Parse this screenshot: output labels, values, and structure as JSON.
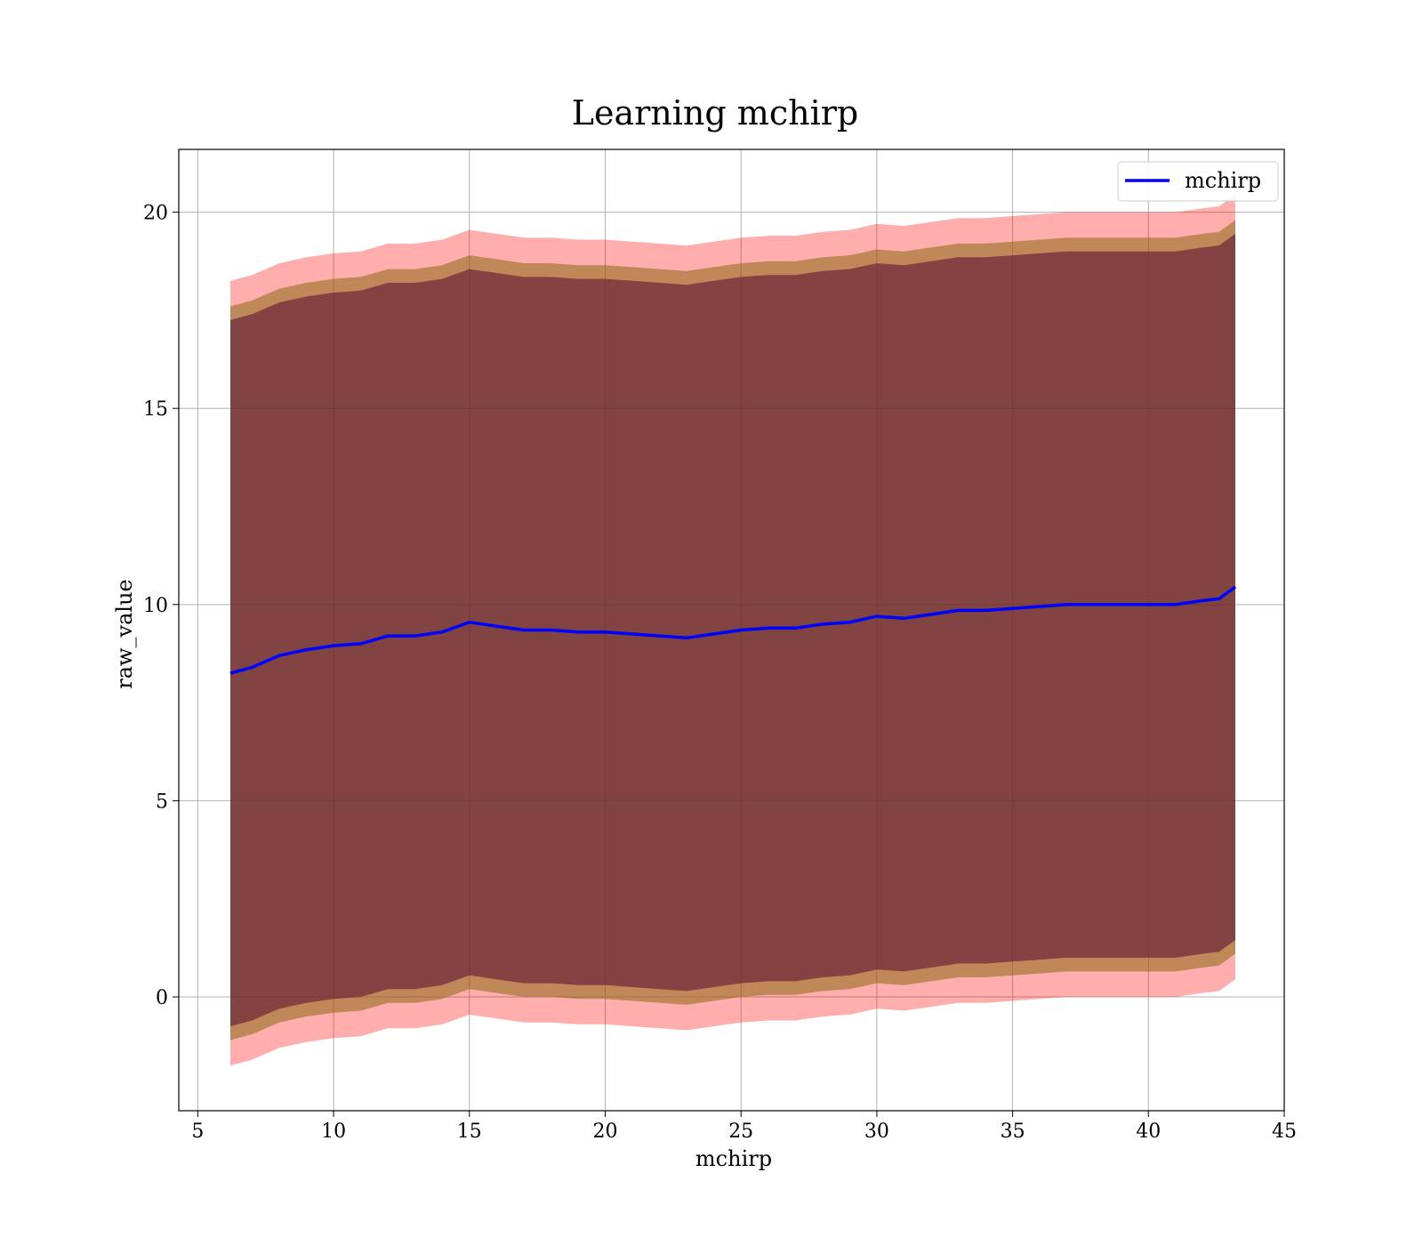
{
  "chart_data": {
    "type": "line",
    "title": "Learning mchirp",
    "xlabel": "mchirp",
    "ylabel": "raw_value",
    "xlim": [
      4.3,
      45
    ],
    "ylim": [
      -2.9,
      21.6
    ],
    "xticks": [
      5,
      10,
      15,
      20,
      25,
      30,
      35,
      40,
      45
    ],
    "yticks": [
      0,
      5,
      10,
      15,
      20
    ],
    "grid": true,
    "legend_position": "top-right",
    "colors": {
      "line": "#0000ff",
      "outer_band": "#ff0000",
      "middle_band": "#8b6914",
      "inner_band": "#5a1a33"
    },
    "x": [
      6.2,
      7,
      8,
      9,
      10,
      11,
      12,
      13,
      14,
      15,
      16,
      17,
      18,
      19,
      20,
      21,
      22,
      23,
      24,
      25,
      26,
      27,
      28,
      29,
      30,
      31,
      32,
      33,
      34,
      35,
      36,
      37,
      38,
      39,
      40,
      41,
      42,
      42.6,
      43.2
    ],
    "series": [
      {
        "name": "mchirp",
        "values": [
          8.25,
          8.4,
          8.7,
          8.85,
          8.95,
          9.0,
          9.2,
          9.2,
          9.3,
          9.55,
          9.45,
          9.35,
          9.35,
          9.3,
          9.3,
          9.25,
          9.2,
          9.15,
          9.25,
          9.35,
          9.4,
          9.4,
          9.5,
          9.55,
          9.7,
          9.65,
          9.75,
          9.85,
          9.85,
          9.9,
          9.95,
          10.0,
          10.0,
          10.0,
          10.0,
          10.0,
          10.1,
          10.15,
          10.45
        ]
      }
    ],
    "bands": {
      "outer": {
        "lower": [
          -1.75,
          -1.6,
          -1.3,
          -1.15,
          -1.05,
          -1.0,
          -0.8,
          -0.8,
          -0.7,
          -0.45,
          -0.55,
          -0.65,
          -0.65,
          -0.7,
          -0.7,
          -0.75,
          -0.8,
          -0.85,
          -0.75,
          -0.65,
          -0.6,
          -0.6,
          -0.5,
          -0.45,
          -0.3,
          -0.35,
          -0.25,
          -0.15,
          -0.15,
          -0.1,
          -0.05,
          0.0,
          0.0,
          0.0,
          0.0,
          0.0,
          0.1,
          0.15,
          0.45
        ],
        "upper": [
          18.25,
          18.4,
          18.7,
          18.85,
          18.95,
          19.0,
          19.2,
          19.2,
          19.3,
          19.55,
          19.45,
          19.35,
          19.35,
          19.3,
          19.3,
          19.25,
          19.2,
          19.15,
          19.25,
          19.35,
          19.4,
          19.4,
          19.5,
          19.55,
          19.7,
          19.65,
          19.75,
          19.85,
          19.85,
          19.9,
          19.95,
          20.0,
          20.0,
          20.0,
          20.0,
          20.0,
          20.1,
          20.15,
          20.45
        ]
      },
      "middle": {
        "lower": [
          -1.1,
          -0.95,
          -0.65,
          -0.5,
          -0.4,
          -0.35,
          -0.15,
          -0.15,
          -0.05,
          0.2,
          0.1,
          0.0,
          0.0,
          -0.05,
          -0.05,
          -0.1,
          -0.15,
          -0.2,
          -0.1,
          0.0,
          0.05,
          0.05,
          0.15,
          0.2,
          0.35,
          0.3,
          0.4,
          0.5,
          0.5,
          0.55,
          0.6,
          0.65,
          0.65,
          0.65,
          0.65,
          0.65,
          0.75,
          0.8,
          1.1
        ],
        "upper": [
          17.6,
          17.75,
          18.05,
          18.2,
          18.3,
          18.35,
          18.55,
          18.55,
          18.65,
          18.9,
          18.8,
          18.7,
          18.7,
          18.65,
          18.65,
          18.6,
          18.55,
          18.5,
          18.6,
          18.7,
          18.75,
          18.75,
          18.85,
          18.9,
          19.05,
          19.0,
          19.1,
          19.2,
          19.2,
          19.25,
          19.3,
          19.35,
          19.35,
          19.35,
          19.35,
          19.35,
          19.45,
          19.5,
          19.8
        ]
      },
      "inner": {
        "lower": [
          -0.75,
          -0.6,
          -0.3,
          -0.15,
          -0.05,
          0.0,
          0.2,
          0.2,
          0.3,
          0.55,
          0.45,
          0.35,
          0.35,
          0.3,
          0.3,
          0.25,
          0.2,
          0.15,
          0.25,
          0.35,
          0.4,
          0.4,
          0.5,
          0.55,
          0.7,
          0.65,
          0.75,
          0.85,
          0.85,
          0.9,
          0.95,
          1.0,
          1.0,
          1.0,
          1.0,
          1.0,
          1.1,
          1.15,
          1.45
        ],
        "upper": [
          17.25,
          17.4,
          17.7,
          17.85,
          17.95,
          18.0,
          18.2,
          18.2,
          18.3,
          18.55,
          18.45,
          18.35,
          18.35,
          18.3,
          18.3,
          18.25,
          18.2,
          18.15,
          18.25,
          18.35,
          18.4,
          18.4,
          18.5,
          18.55,
          18.7,
          18.65,
          18.75,
          18.85,
          18.85,
          18.9,
          18.95,
          19.0,
          19.0,
          19.0,
          19.0,
          19.0,
          19.1,
          19.15,
          19.45
        ]
      }
    }
  }
}
